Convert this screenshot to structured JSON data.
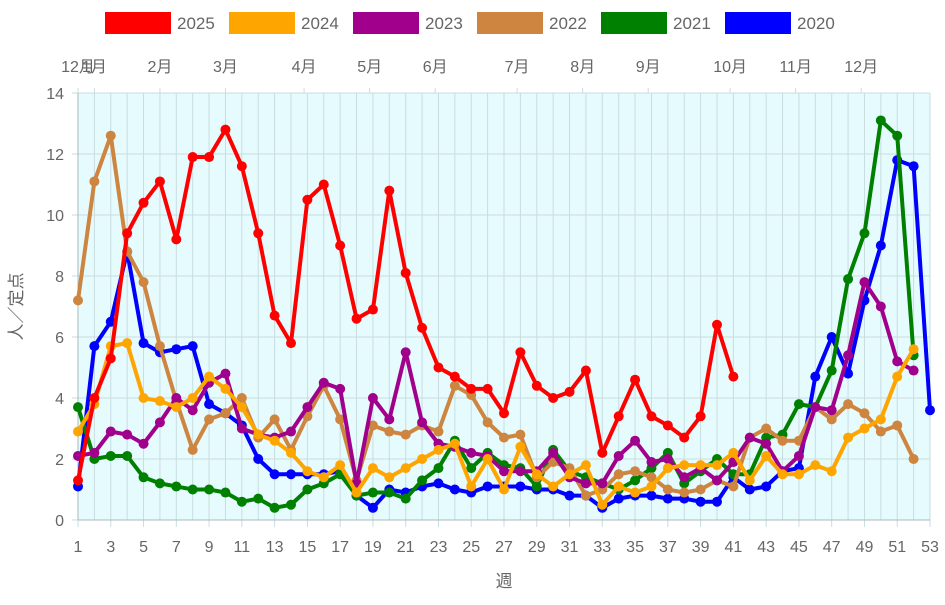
{
  "chart_data": {
    "type": "line",
    "xlabel": "週",
    "ylabel": "人／定点",
    "ylim": [
      0,
      14
    ],
    "yticks": [
      0,
      2,
      4,
      6,
      8,
      10,
      12,
      14
    ],
    "xlim": [
      1,
      53
    ],
    "xticks": [
      1,
      3,
      5,
      7,
      9,
      11,
      13,
      15,
      17,
      19,
      21,
      23,
      25,
      27,
      29,
      31,
      33,
      35,
      37,
      39,
      41,
      43,
      45,
      47,
      49,
      51,
      53
    ],
    "grid": true,
    "legend_position": "top",
    "plot_background": "#e6fbfd",
    "month_labels": [
      {
        "label": "12月",
        "week": 1
      },
      {
        "label": "1月",
        "week": 2
      },
      {
        "label": "2月",
        "week": 6
      },
      {
        "label": "3月",
        "week": 10
      },
      {
        "label": "4月",
        "week": 14.8
      },
      {
        "label": "5月",
        "week": 18.8
      },
      {
        "label": "6月",
        "week": 22.8
      },
      {
        "label": "7月",
        "week": 27.8
      },
      {
        "label": "8月",
        "week": 31.8
      },
      {
        "label": "9月",
        "week": 35.8
      },
      {
        "label": "10月",
        "week": 40.8
      },
      {
        "label": "11月",
        "week": 44.8
      },
      {
        "label": "12月",
        "week": 48.8
      }
    ],
    "series": [
      {
        "name": "2020",
        "color": "#0000ff",
        "values": [
          1.1,
          5.7,
          6.5,
          8.8,
          5.8,
          5.5,
          5.6,
          5.7,
          3.8,
          3.5,
          3.1,
          2.0,
          1.5,
          1.5,
          1.5,
          1.5,
          1.6,
          0.8,
          0.4,
          1.0,
          0.9,
          1.1,
          1.2,
          1.0,
          0.9,
          1.1,
          1.1,
          1.1,
          1.0,
          1.0,
          0.8,
          0.8,
          0.4,
          0.7,
          0.8,
          0.8,
          0.7,
          0.7,
          0.6,
          0.6,
          1.4,
          1.0,
          1.1,
          1.6,
          1.7,
          4.7,
          6.0,
          4.8,
          7.2,
          9.0,
          11.8,
          11.6,
          3.6
        ]
      },
      {
        "name": "2021",
        "color": "#008000",
        "values": [
          3.7,
          2.0,
          2.1,
          2.1,
          1.4,
          1.2,
          1.1,
          1.0,
          1.0,
          0.9,
          0.6,
          0.7,
          0.4,
          0.5,
          1.0,
          1.2,
          1.5,
          0.8,
          0.9,
          0.9,
          0.7,
          1.3,
          1.7,
          2.6,
          1.7,
          2.2,
          1.8,
          1.7,
          1.1,
          2.3,
          1.6,
          1.4,
          1.2,
          1.0,
          1.3,
          1.7,
          2.2,
          1.2,
          1.6,
          2.0,
          1.5,
          1.5,
          2.7,
          2.8,
          3.8,
          3.7,
          4.9,
          7.9,
          9.4,
          13.1,
          12.6,
          5.4
        ]
      },
      {
        "name": "2022",
        "color": "#cd853f",
        "values": [
          7.2,
          11.1,
          12.6,
          8.8,
          7.8,
          5.7,
          3.9,
          2.3,
          3.3,
          3.5,
          4.0,
          2.7,
          3.3,
          2.3,
          3.4,
          4.4,
          3.3,
          1.3,
          3.1,
          2.9,
          2.8,
          3.1,
          2.9,
          4.4,
          4.1,
          3.2,
          2.7,
          2.8,
          1.4,
          1.9,
          1.7,
          0.8,
          1.0,
          1.5,
          1.6,
          1.4,
          1.0,
          0.9,
          1.0,
          1.3,
          1.1,
          2.7,
          3.0,
          2.6,
          2.6,
          3.7,
          3.3,
          3.8,
          3.5,
          2.9,
          3.1,
          2.0
        ]
      },
      {
        "name": "2023",
        "color": "#a0008c",
        "values": [
          2.1,
          2.2,
          2.9,
          2.8,
          2.5,
          3.2,
          4.0,
          3.6,
          4.5,
          4.8,
          3.0,
          2.8,
          2.7,
          2.9,
          3.7,
          4.5,
          4.3,
          1.2,
          4.0,
          3.3,
          5.5,
          3.2,
          2.5,
          2.4,
          2.2,
          2.1,
          1.6,
          1.6,
          1.6,
          2.2,
          1.4,
          1.2,
          1.2,
          2.1,
          2.6,
          1.9,
          2.0,
          1.4,
          1.7,
          1.3,
          1.9,
          2.7,
          2.5,
          1.6,
          2.1,
          3.7,
          3.6,
          5.4,
          7.8,
          7.0,
          5.2,
          4.9
        ]
      },
      {
        "name": "2024",
        "color": "#ffa500",
        "values": [
          2.9,
          3.8,
          5.7,
          5.8,
          4.0,
          3.9,
          3.7,
          4.0,
          4.7,
          4.3,
          3.7,
          2.8,
          2.6,
          2.2,
          1.6,
          1.4,
          1.8,
          0.9,
          1.7,
          1.4,
          1.7,
          2.0,
          2.3,
          2.5,
          1.1,
          2.0,
          1.0,
          2.4,
          1.5,
          1.1,
          1.5,
          1.8,
          0.5,
          1.1,
          0.9,
          1.1,
          1.7,
          1.8,
          1.8,
          1.8,
          2.2,
          1.3,
          2.1,
          1.5,
          1.5,
          1.8,
          1.6,
          2.7,
          3.0,
          3.3,
          4.7,
          5.6
        ]
      },
      {
        "name": "2025",
        "color": "#ff0000",
        "values": [
          1.3,
          4.0,
          5.3,
          9.4,
          10.4,
          11.1,
          9.2,
          11.9,
          11.9,
          12.8,
          11.6,
          9.4,
          6.7,
          5.8,
          10.5,
          11.0,
          9.0,
          6.6,
          6.9,
          10.8,
          8.1,
          6.3,
          5.0,
          4.7,
          4.3,
          4.3,
          3.5,
          5.5,
          4.4,
          4.0,
          4.2,
          4.9,
          2.2,
          3.4,
          4.6,
          3.4,
          3.1,
          2.7,
          3.4,
          6.4,
          4.7
        ]
      }
    ]
  }
}
